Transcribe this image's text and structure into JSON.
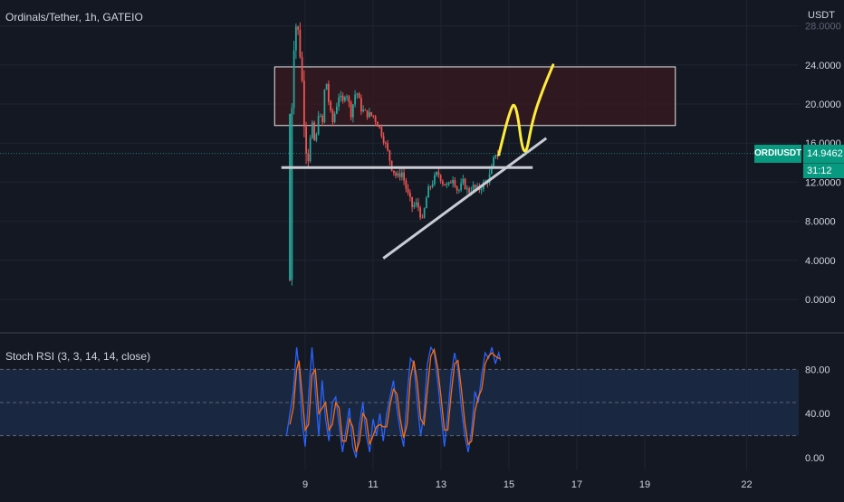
{
  "header": {
    "symbol_title": "Ordinals/Tether, 1h, GATEIO"
  },
  "price_axis": {
    "currency": "USDT",
    "ticks": [
      {
        "value": 0,
        "label": "0.0000"
      },
      {
        "value": 4,
        "label": "4.0000"
      },
      {
        "value": 8,
        "label": "8.0000"
      },
      {
        "value": 12,
        "label": "12.0000"
      },
      {
        "value": 16,
        "label": "16.0000"
      },
      {
        "value": 20,
        "label": "20.0000"
      },
      {
        "value": 24,
        "label": "24.0000"
      },
      {
        "value": 28,
        "label": "28.0000"
      }
    ],
    "last_price": {
      "symbol": "ORDIUSDT",
      "price": "14.9462",
      "countdown": "31:12",
      "value": 14.9462
    }
  },
  "rsi_panel": {
    "title": "Stoch RSI (3, 3, 14, 14, close)",
    "ticks": [
      {
        "value": 80,
        "label": "80.00"
      },
      {
        "value": 40,
        "label": "40.00"
      },
      {
        "value": 0,
        "label": "0.00"
      }
    ],
    "band": [
      20,
      80
    ]
  },
  "time_axis": {
    "ticks": [
      {
        "day": 9,
        "label": "9"
      },
      {
        "day": 11,
        "label": "11"
      },
      {
        "day": 13,
        "label": "13"
      },
      {
        "day": 15,
        "label": "15"
      },
      {
        "day": 17,
        "label": "17"
      },
      {
        "day": 19,
        "label": "19"
      },
      {
        "day": 22,
        "label": "22"
      }
    ]
  },
  "colors": {
    "background": "#141823",
    "up": "#26a69a",
    "down": "#ef5350",
    "grid": "#1f2433",
    "axis_text": "#d1d4dc",
    "drawing": "#c9ccd4",
    "annotation": "#ffeb3b",
    "zone_fill": "#3a1820",
    "rsi_k": "#2962ff",
    "rsi_d": "#ff6d00",
    "rsi_band": "#1a2c45"
  },
  "chart_data": {
    "type": "candlestick",
    "title": "Ordinals/Tether, 1h, GATEIO",
    "x_unit": "day of month",
    "ylim": [
      -1.5,
      30
    ],
    "grid": true,
    "price_path": [
      [
        8.55,
        2.0
      ],
      [
        8.58,
        14.0
      ],
      [
        8.62,
        22.0
      ],
      [
        8.68,
        27.0
      ],
      [
        8.75,
        28.5
      ],
      [
        8.82,
        26.5
      ],
      [
        8.88,
        24.0
      ],
      [
        8.95,
        20.0
      ],
      [
        9.0,
        16.0
      ],
      [
        9.1,
        14.5
      ],
      [
        9.2,
        18.0
      ],
      [
        9.3,
        15.5
      ],
      [
        9.4,
        19.5
      ],
      [
        9.5,
        17.5
      ],
      [
        9.6,
        23.0
      ],
      [
        9.7,
        20.0
      ],
      [
        9.8,
        18.0
      ],
      [
        9.9,
        19.5
      ],
      [
        10.0,
        21.0
      ],
      [
        10.1,
        20.0
      ],
      [
        10.2,
        21.5
      ],
      [
        10.35,
        19.0
      ],
      [
        10.5,
        21.5
      ],
      [
        10.65,
        19.5
      ],
      [
        10.8,
        19.0
      ],
      [
        11.0,
        18.8
      ],
      [
        11.2,
        17.5
      ],
      [
        11.4,
        15.5
      ],
      [
        11.55,
        13.5
      ],
      [
        11.7,
        12.5
      ],
      [
        11.85,
        13.0
      ],
      [
        12.0,
        11.0
      ],
      [
        12.15,
        9.5
      ],
      [
        12.3,
        9.8
      ],
      [
        12.45,
        8.0
      ],
      [
        12.6,
        11.0
      ],
      [
        12.75,
        12.0
      ],
      [
        12.9,
        13.0
      ],
      [
        13.05,
        12.0
      ],
      [
        13.2,
        11.5
      ],
      [
        13.35,
        12.5
      ],
      [
        13.5,
        11.0
      ],
      [
        13.65,
        12.0
      ],
      [
        13.8,
        11.0
      ],
      [
        13.95,
        11.5
      ],
      [
        14.1,
        11.2
      ],
      [
        14.25,
        11.8
      ],
      [
        14.4,
        12.3
      ],
      [
        14.5,
        13.5
      ],
      [
        14.6,
        15.0
      ],
      [
        14.7,
        14.8
      ],
      [
        14.75,
        14.95
      ]
    ],
    "rsi_k_path": [
      [
        8.45,
        20
      ],
      [
        8.55,
        40
      ],
      [
        8.65,
        60
      ],
      [
        8.75,
        100
      ],
      [
        8.82,
        80
      ],
      [
        8.9,
        35
      ],
      [
        9.0,
        10
      ],
      [
        9.1,
        55
      ],
      [
        9.2,
        100
      ],
      [
        9.3,
        60
      ],
      [
        9.4,
        20
      ],
      [
        9.5,
        70
      ],
      [
        9.6,
        35
      ],
      [
        9.7,
        15
      ],
      [
        9.8,
        50
      ],
      [
        9.9,
        55
      ],
      [
        10.0,
        30
      ],
      [
        10.1,
        5
      ],
      [
        10.2,
        25
      ],
      [
        10.3,
        45
      ],
      [
        10.4,
        10
      ],
      [
        10.5,
        0
      ],
      [
        10.6,
        30
      ],
      [
        10.7,
        50
      ],
      [
        10.8,
        20
      ],
      [
        10.9,
        5
      ],
      [
        11.0,
        35
      ],
      [
        11.1,
        20
      ],
      [
        11.2,
        40
      ],
      [
        11.3,
        15
      ],
      [
        11.4,
        40
      ],
      [
        11.5,
        55
      ],
      [
        11.6,
        70
      ],
      [
        11.7,
        45
      ],
      [
        11.8,
        25
      ],
      [
        11.9,
        10
      ],
      [
        12.0,
        55
      ],
      [
        12.1,
        90
      ],
      [
        12.2,
        85
      ],
      [
        12.3,
        50
      ],
      [
        12.4,
        20
      ],
      [
        12.5,
        40
      ],
      [
        12.6,
        85
      ],
      [
        12.7,
        100
      ],
      [
        12.8,
        95
      ],
      [
        12.9,
        70
      ],
      [
        13.0,
        40
      ],
      [
        13.1,
        10
      ],
      [
        13.2,
        40
      ],
      [
        13.3,
        75
      ],
      [
        13.4,
        95
      ],
      [
        13.5,
        80
      ],
      [
        13.6,
        45
      ],
      [
        13.7,
        20
      ],
      [
        13.8,
        5
      ],
      [
        13.9,
        25
      ],
      [
        14.0,
        60
      ],
      [
        14.1,
        50
      ],
      [
        14.2,
        75
      ],
      [
        14.3,
        95
      ],
      [
        14.4,
        90
      ],
      [
        14.5,
        100
      ],
      [
        14.6,
        85
      ],
      [
        14.7,
        95
      ],
      [
        14.75,
        88
      ]
    ],
    "rsi_d_path": [
      [
        8.55,
        30
      ],
      [
        8.65,
        45
      ],
      [
        8.75,
        80
      ],
      [
        8.82,
        88
      ],
      [
        8.9,
        60
      ],
      [
        9.0,
        25
      ],
      [
        9.1,
        30
      ],
      [
        9.2,
        75
      ],
      [
        9.3,
        80
      ],
      [
        9.4,
        40
      ],
      [
        9.5,
        45
      ],
      [
        9.6,
        50
      ],
      [
        9.7,
        25
      ],
      [
        9.8,
        30
      ],
      [
        9.9,
        50
      ],
      [
        10.0,
        45
      ],
      [
        10.1,
        15
      ],
      [
        10.2,
        15
      ],
      [
        10.3,
        35
      ],
      [
        10.4,
        28
      ],
      [
        10.5,
        5
      ],
      [
        10.6,
        15
      ],
      [
        10.7,
        40
      ],
      [
        10.8,
        35
      ],
      [
        10.9,
        12
      ],
      [
        11.0,
        20
      ],
      [
        11.1,
        28
      ],
      [
        11.2,
        30
      ],
      [
        11.3,
        28
      ],
      [
        11.4,
        28
      ],
      [
        11.5,
        48
      ],
      [
        11.6,
        62
      ],
      [
        11.7,
        58
      ],
      [
        11.8,
        35
      ],
      [
        11.9,
        18
      ],
      [
        12.0,
        30
      ],
      [
        12.1,
        72
      ],
      [
        12.2,
        88
      ],
      [
        12.3,
        68
      ],
      [
        12.4,
        35
      ],
      [
        12.5,
        30
      ],
      [
        12.6,
        62
      ],
      [
        12.7,
        92
      ],
      [
        12.8,
        98
      ],
      [
        12.9,
        82
      ],
      [
        13.0,
        55
      ],
      [
        13.1,
        25
      ],
      [
        13.2,
        25
      ],
      [
        13.3,
        58
      ],
      [
        13.4,
        85
      ],
      [
        13.5,
        88
      ],
      [
        13.6,
        62
      ],
      [
        13.7,
        32
      ],
      [
        13.8,
        12
      ],
      [
        13.9,
        15
      ],
      [
        14.0,
        42
      ],
      [
        14.1,
        55
      ],
      [
        14.2,
        62
      ],
      [
        14.3,
        85
      ],
      [
        14.4,
        92
      ],
      [
        14.5,
        95
      ],
      [
        14.6,
        92
      ],
      [
        14.7,
        90
      ],
      [
        14.75,
        90
      ]
    ],
    "annotations": {
      "resistance_zone": {
        "x": [
          8.1,
          19.9
        ],
        "y": [
          17.8,
          23.8
        ]
      },
      "support_line": {
        "x": [
          8.3,
          15.7
        ],
        "y": [
          13.5,
          13.5
        ]
      },
      "trend_line": {
        "x": [
          11.3,
          16.1
        ],
        "y": [
          4.2,
          16.5
        ]
      },
      "projection": [
        [
          14.7,
          14.8
        ],
        [
          15.0,
          19.0
        ],
        [
          15.2,
          20.5
        ],
        [
          15.45,
          13.8
        ],
        [
          15.7,
          18.5
        ],
        [
          16.0,
          21.5
        ],
        [
          16.3,
          24.0
        ]
      ]
    }
  }
}
